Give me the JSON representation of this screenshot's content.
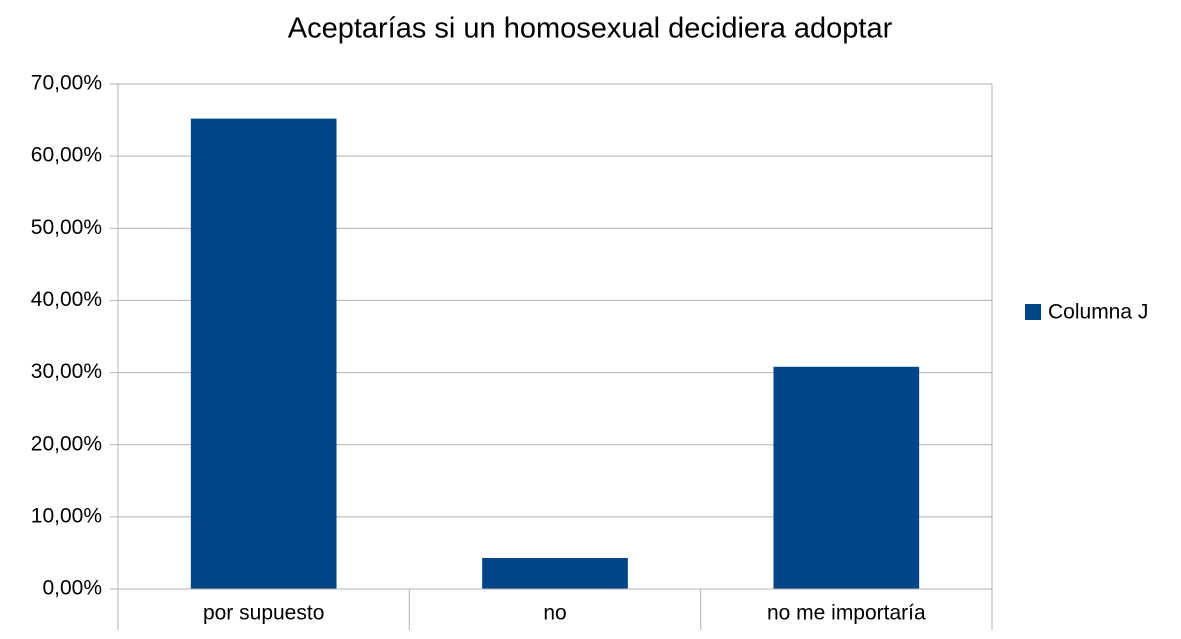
{
  "chart_data": {
    "type": "bar",
    "title": "Aceptarías si un homosexual decidiera adoptar",
    "categories": [
      "por supuesto",
      "no",
      "no me importaría"
    ],
    "series": [
      {
        "name": "Columna J",
        "color": "#004586",
        "values": [
          65.2,
          4.3,
          30.8
        ]
      }
    ],
    "ylim": [
      0,
      70
    ],
    "yticks": [
      {
        "value": 0,
        "label": "0,00%"
      },
      {
        "value": 10,
        "label": "10,00%"
      },
      {
        "value": 20,
        "label": "20,00%"
      },
      {
        "value": 30,
        "label": "30,00%"
      },
      {
        "value": 40,
        "label": "40,00%"
      },
      {
        "value": 50,
        "label": "50,00%"
      },
      {
        "value": 60,
        "label": "60,00%"
      },
      {
        "value": 70,
        "label": "70,00%"
      }
    ],
    "grid": true,
    "legend": "right"
  }
}
